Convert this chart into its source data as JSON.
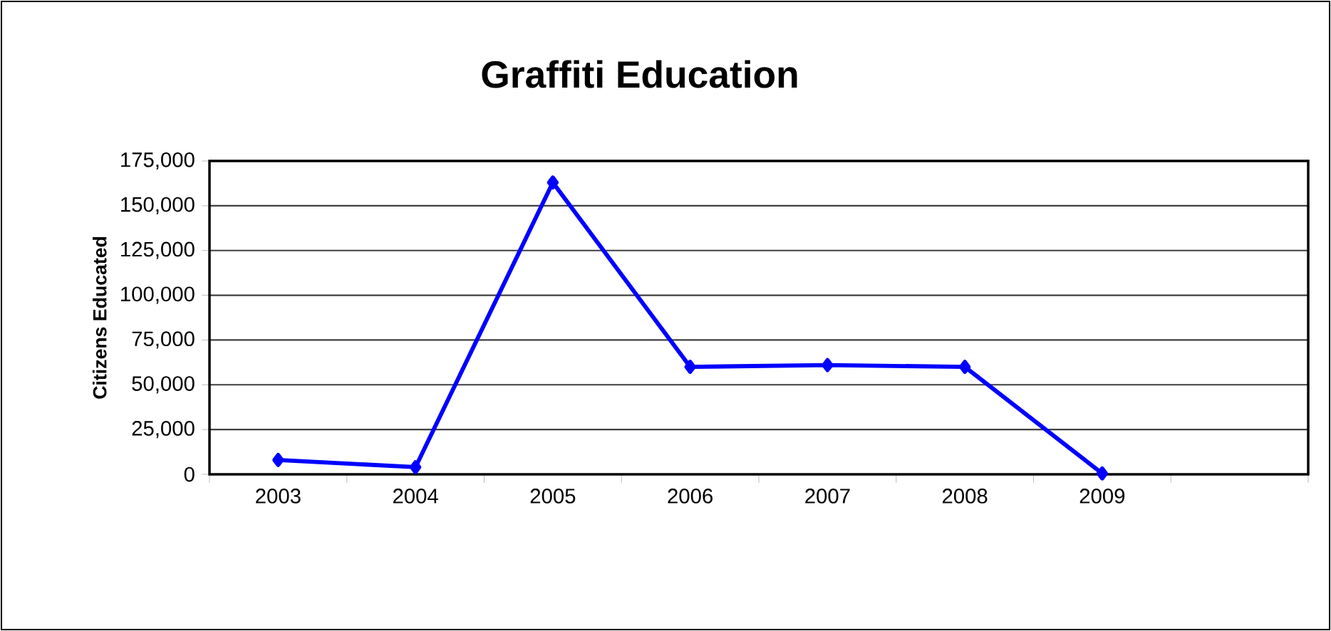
{
  "chart_data": {
    "type": "line",
    "title": "Graffiti Education",
    "ylabel": "Citizens Educated",
    "categories": [
      "2003",
      "2004",
      "2005",
      "2006",
      "2007",
      "2008",
      "2009",
      null
    ],
    "series": [
      {
        "color": "#0000ff",
        "values": [
          8000,
          4000,
          163000,
          60000,
          61000,
          60000,
          500,
          null
        ]
      }
    ],
    "ylim": [
      0,
      175000
    ],
    "yticks": [
      0,
      {
        "value": 25000,
        "label": "25,000"
      },
      {
        "value": 50000,
        "label": "50,000"
      },
      {
        "value": 75000,
        "label": "75,000"
      },
      {
        "value": 100000,
        "label": "100,000"
      },
      {
        "value": 125000,
        "label": "125,000"
      },
      {
        "value": 150000,
        "label": "150,000"
      },
      {
        "value": 175000,
        "label": "175,000"
      }
    ],
    "grid": "y",
    "marker": "diamond"
  }
}
